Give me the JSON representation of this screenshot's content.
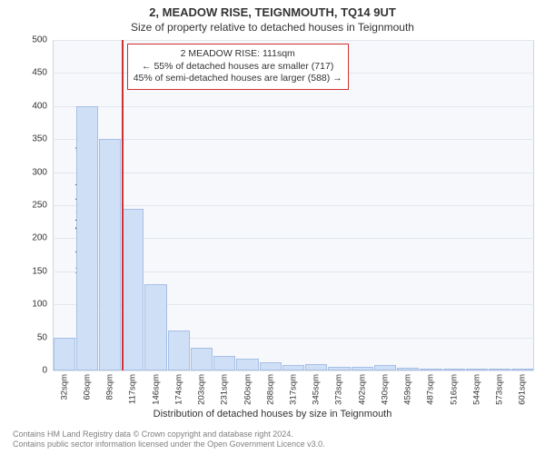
{
  "title": "2, MEADOW RISE, TEIGNMOUTH, TQ14 9UT",
  "subtitle": "Size of property relative to detached houses in Teignmouth",
  "chart": {
    "type": "histogram",
    "background_color": "#f6f8fc",
    "border_color": "#d0d4dd",
    "grid_color": "#e2e6ee",
    "bar_fill": "#cfdff6",
    "bar_border": "#a7bfe6",
    "ylabel": "Number of detached properties",
    "xlabel": "Distribution of detached houses by size in Teignmouth",
    "ymax": 500,
    "ytick_step": 50,
    "x_categories": [
      "32sqm",
      "60sqm",
      "89sqm",
      "117sqm",
      "146sqm",
      "174sqm",
      "203sqm",
      "231sqm",
      "260sqm",
      "288sqm",
      "317sqm",
      "345sqm",
      "373sqm",
      "402sqm",
      "430sqm",
      "459sqm",
      "487sqm",
      "516sqm",
      "544sqm",
      "573sqm",
      "601sqm"
    ],
    "values": [
      50,
      400,
      350,
      245,
      130,
      60,
      35,
      22,
      18,
      12,
      8,
      10,
      6,
      6,
      8,
      4,
      3,
      2,
      3,
      2,
      1
    ],
    "reference_line": {
      "color": "#d03030",
      "at_category_index": 3
    }
  },
  "callout": {
    "line1": "2 MEADOW RISE: 111sqm",
    "line2": "← 55% of detached houses are smaller (717)",
    "line3": "45% of semi-detached houses are larger (588) →",
    "border_color": "#d03030",
    "background": "#ffffff",
    "fontsize_pt": 10.5
  },
  "footer": {
    "line1": "Contains HM Land Registry data © Crown copyright and database right 2024.",
    "line2": "Contains public sector information licensed under the Open Government Licence v3.0.",
    "color": "#808080"
  },
  "fonts": {
    "title_pt": 13,
    "subtitle_pt": 12,
    "axis_label_pt": 11,
    "tick_pt": 10
  }
}
